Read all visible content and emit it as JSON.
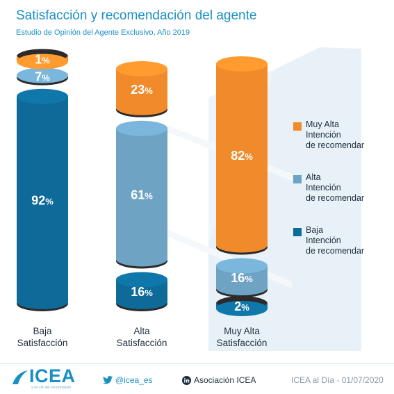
{
  "title": "Satisfacción y recomendación del agente",
  "subtitle": "Estudio de Opinión del Agente Exclusivo, Año 2019",
  "colors": {
    "muy_alta": "#f08a2a",
    "alta": "#6ea3c4",
    "baja": "#0e6a99",
    "title": "#1a8fc4"
  },
  "chart_data": {
    "type": "bar",
    "stacked": true,
    "categories": [
      "Baja\nSatisfacción",
      "Alta\nSatisfacción",
      "Muy Alta\nSatisfacción"
    ],
    "series": [
      {
        "name": "Baja\nIntención\nde recomendar",
        "values": [
          92,
          16,
          2
        ]
      },
      {
        "name": "Alta\nIntención\nde recomendar",
        "values": [
          7,
          61,
          16
        ]
      },
      {
        "name": "Muy Alta\nIntención\nde recomendar",
        "values": [
          1,
          23,
          82
        ]
      }
    ],
    "value_suffix": "%",
    "ylim": [
      0,
      100
    ],
    "legend": "right",
    "grid": false
  },
  "footer": {
    "logo": "ICEA",
    "logo_tag": "a un clic del conocimiento",
    "twitter": "@icea_es",
    "linkedin": "Asociación ICEA",
    "date": "ICEA al Día - 01/07/2020"
  }
}
